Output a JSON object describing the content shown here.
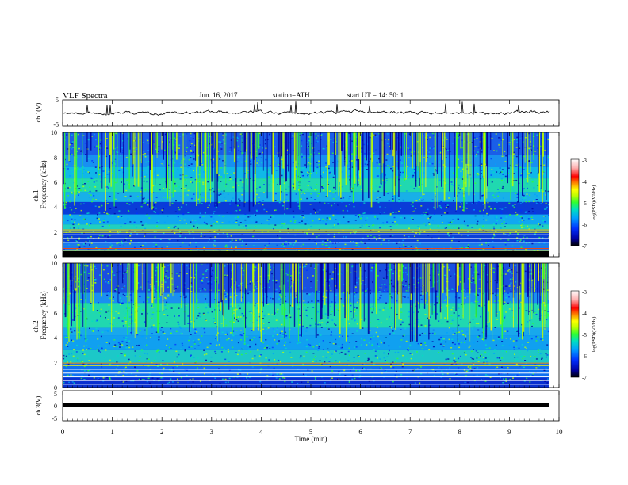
{
  "header": {
    "title": "VLF  Spectra",
    "date": "Jun. 16, 2017",
    "station": "station=ATH",
    "start_ut": "start  UT  =    14: 50: 1"
  },
  "chart_data": [
    {
      "type": "line",
      "panel": "ch1-waveform",
      "ylabel": "ch.1(V)",
      "ylim": [
        -5,
        5
      ],
      "yticks": [
        "5",
        "-5"
      ],
      "xlim": [
        0,
        10
      ],
      "baseline_value": 0.2
    },
    {
      "type": "heatmap",
      "panel": "ch1-spectrogram",
      "ylabel_1": "ch.1",
      "ylabel_2": "Frequency  (kHz)",
      "ylim": [
        0,
        10
      ],
      "yticks": [
        "0",
        "2",
        "4",
        "6",
        "8",
        "10"
      ],
      "xlim": [
        0,
        10
      ],
      "colorbar": {
        "label": "log(PSD)(V²/Hz)",
        "ticks": [
          "-3",
          "-4",
          "-5",
          "-6",
          "-7"
        ],
        "range": [
          -7,
          -3
        ],
        "colors": [
          "#000000",
          "#0000a0",
          "#0030ff",
          "#00a0ff",
          "#00e0c0",
          "#30ff30",
          "#c0ff00",
          "#ffff00",
          "#ff9000",
          "#ff0000",
          "#ffb0b0",
          "#ffffff"
        ]
      }
    },
    {
      "type": "heatmap",
      "panel": "ch2-spectrogram",
      "ylabel_1": "ch.2",
      "ylabel_2": "Frequency  (kHz)",
      "ylim": [
        0,
        10
      ],
      "yticks": [
        "0",
        "2",
        "4",
        "6",
        "8",
        "10"
      ],
      "xlim": [
        0,
        10
      ],
      "colorbar": {
        "label": "log(PSD)(V²/Hz)",
        "ticks": [
          "-3",
          "-4",
          "-5",
          "-6",
          "-7"
        ],
        "range": [
          -7,
          -3
        ]
      }
    },
    {
      "type": "line",
      "panel": "ch3-waveform",
      "ylabel": "ch.3(V)",
      "ylim": [
        -5,
        5
      ],
      "yticks": [
        "5",
        "0",
        "-5"
      ],
      "xlim": [
        0,
        10
      ],
      "baseline_value": 0
    }
  ],
  "xaxis": {
    "label": "Time  (min)",
    "ticks": [
      "0",
      "1",
      "2",
      "3",
      "4",
      "5",
      "6",
      "7",
      "8",
      "9",
      "10"
    ]
  }
}
